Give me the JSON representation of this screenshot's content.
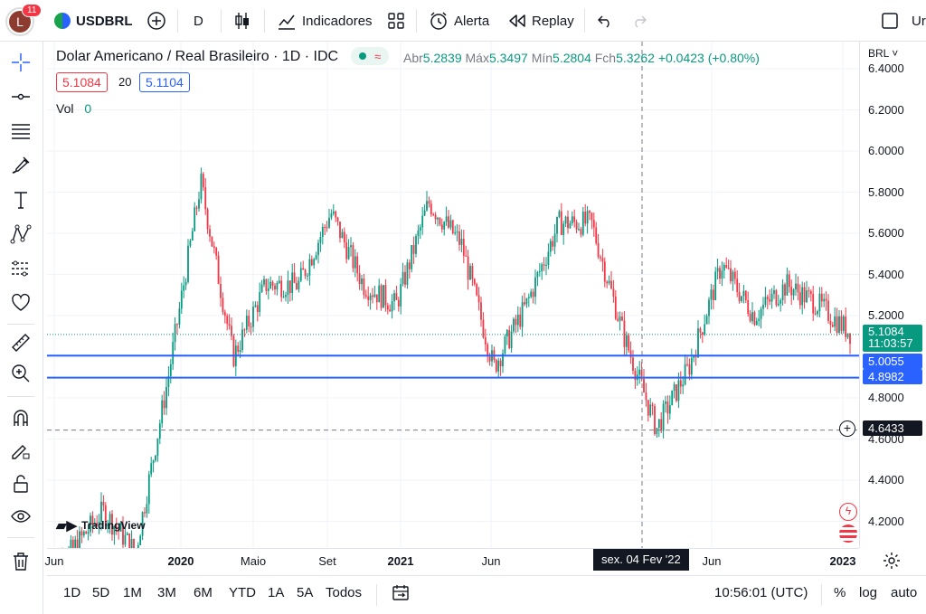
{
  "topbar": {
    "notif_count": "11",
    "avatar_letter": "L",
    "symbol": "USDBRL",
    "interval": "D",
    "indicators_label": "Indicadores",
    "alert_label": "Alerta",
    "replay_label": "Replay",
    "cut_text": "Ur"
  },
  "legend": {
    "title": "Dolar Americano / Real Brasileiro · 1D · IDC",
    "open_label": "Abr",
    "open_value": "5.2839",
    "high_label": "Máx",
    "high_value": "5.3497",
    "low_label": "Mín",
    "low_value": "5.2804",
    "close_label": "Fch",
    "close_value": "5.3262",
    "change": "+0.0423 (+0.80%)",
    "sell_price": "5.1084",
    "spread": "20",
    "buy_price": "5.1104",
    "vol_label": "Vol",
    "vol_value": "0"
  },
  "price_axis": {
    "currency": "BRL",
    "ticks": [
      "6.4000",
      "6.2000",
      "6.0000",
      "5.8000",
      "5.6000",
      "5.4000",
      "5.2000",
      "4.8000",
      "4.6000",
      "4.4000",
      "4.2000"
    ],
    "current_price": "5.1084",
    "countdown": "11:03:57",
    "line_upper": "5.0055",
    "line_lower": "4.8982",
    "crosshair_price": "4.6433"
  },
  "time_axis": {
    "labels": [
      "Jun",
      "2020",
      "Maio",
      "Set",
      "2021",
      "Jun",
      "Jun",
      "2023"
    ],
    "crosshair_date": "sex. 04 Fev '22"
  },
  "watermark": "TradingView",
  "bottombar": {
    "ranges": [
      "1D",
      "5D",
      "1M",
      "3M",
      "6M",
      "YTD",
      "1A",
      "5A",
      "Todos"
    ],
    "clock": "10:56:01 (UTC)",
    "percent": "%",
    "log": "log",
    "auto": "auto"
  },
  "colors": {
    "up": "#089981",
    "down": "#f23645",
    "hline": "#2962ff",
    "accent": "#2962ff"
  },
  "chart_data": {
    "type": "candlestick",
    "title": "Dolar Americano / Real Brasileiro · 1D · IDC",
    "ylim": [
      4.05,
      6.45
    ],
    "x": [
      "2019-06",
      "2019-09",
      "2019-12",
      "2020-01",
      "2020-03",
      "2020-05",
      "2020-06",
      "2020-07",
      "2020-09",
      "2020-10",
      "2020-11",
      "2021-01",
      "2021-03",
      "2021-04",
      "2021-06",
      "2021-08",
      "2021-10",
      "2021-12",
      "2022-02",
      "2022-04",
      "2022-05",
      "2022-07",
      "2022-09",
      "2022-11",
      "2022-12",
      "2023-01"
    ],
    "y": [
      3.95,
      4.05,
      4.25,
      4.05,
      4.9,
      5.85,
      5.0,
      5.35,
      5.35,
      5.7,
      5.35,
      5.25,
      5.75,
      5.55,
      4.95,
      5.25,
      5.65,
      5.65,
      5.1,
      4.65,
      4.95,
      5.45,
      5.2,
      5.35,
      5.25,
      5.11
    ]
  }
}
